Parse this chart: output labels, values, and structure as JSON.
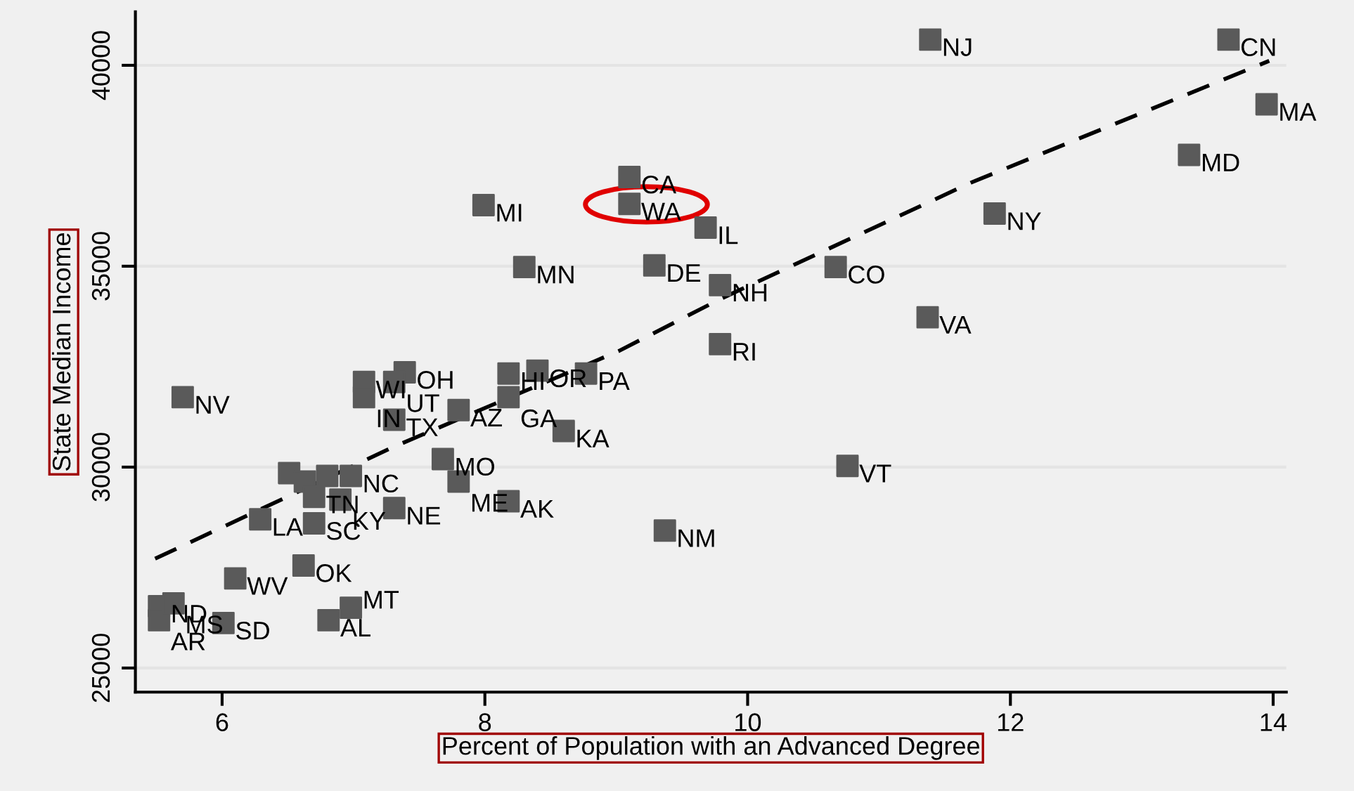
{
  "chart_data": {
    "type": "scatter",
    "xlabel": "Percent of Population with an Advanced Degree",
    "ylabel": "State Median Income",
    "xlim": [
      5.34,
      14.1
    ],
    "ylim": [
      24400,
      41330
    ],
    "xticks": [
      6,
      8,
      10,
      12,
      14
    ],
    "yticks": [
      25000,
      30000,
      35000,
      40000
    ],
    "grid": "y",
    "legend": false,
    "series": [
      {
        "color": "#5a5a5a",
        "marker": "square",
        "x": [
          5.7,
          11.39,
          13.66,
          13.95,
          13.36,
          11.88,
          10.67,
          11.37,
          10.76,
          9.79,
          9.79,
          9.68,
          9.1,
          9.1,
          7.99,
          8.3,
          9.29,
          8.18,
          8.4,
          8.77,
          8.18,
          8.6,
          7.8,
          7.68,
          7.8,
          8.18,
          9.37,
          7.31,
          7.39,
          7.08,
          7.08,
          7.31,
          7.31,
          6.29,
          6.7,
          6.51,
          6.63,
          6.7,
          6.8,
          6.98,
          6.9,
          6.62,
          6.1,
          5.52,
          5.52,
          5.63,
          6.01,
          6.81,
          6.98
        ],
        "values": [
          31740,
          40640,
          40640,
          39030,
          37770,
          36310,
          34980,
          33730,
          30030,
          34530,
          33060,
          35960,
          37220,
          36550,
          36520,
          34980,
          35020,
          32330,
          32400,
          32330,
          31740,
          30900,
          31420,
          30200,
          29640,
          29150,
          28420,
          28980,
          32360,
          32120,
          31740,
          32120,
          31180,
          28700,
          28600,
          29850,
          29640,
          29260,
          29780,
          29780,
          29190,
          27550,
          27230,
          26540,
          26190,
          26610,
          26120,
          26190,
          26500
        ],
        "value_labels": [
          "NV",
          "NJ",
          "CN",
          "MA",
          "MD",
          "NY",
          "CO",
          "VA",
          "VT",
          "NH",
          "RI",
          "IL",
          "CA",
          "WA",
          "MI",
          "MN",
          "DE",
          "HI",
          "OR",
          "PA",
          "GA",
          "KA",
          "AZ",
          "MO",
          "ME",
          "AK",
          "NM",
          "NE",
          "OH",
          "WI",
          "IN",
          "UT",
          "TX",
          "LA",
          "SC",
          null,
          null,
          "TN",
          null,
          "NC",
          "KY",
          "OK",
          "WV",
          "ND",
          "AR",
          "MS",
          "SD",
          "AL",
          "MT"
        ]
      },
      {
        "type": "line",
        "color": "#000000",
        "line_style": "dashed",
        "marker": "none",
        "x": [
          5.49,
          7.31,
          9.02,
          9.79,
          11.7,
          13.97
        ],
        "values": [
          27720,
          30510,
          32890,
          34180,
          37080,
          40110
        ]
      }
    ]
  }
}
